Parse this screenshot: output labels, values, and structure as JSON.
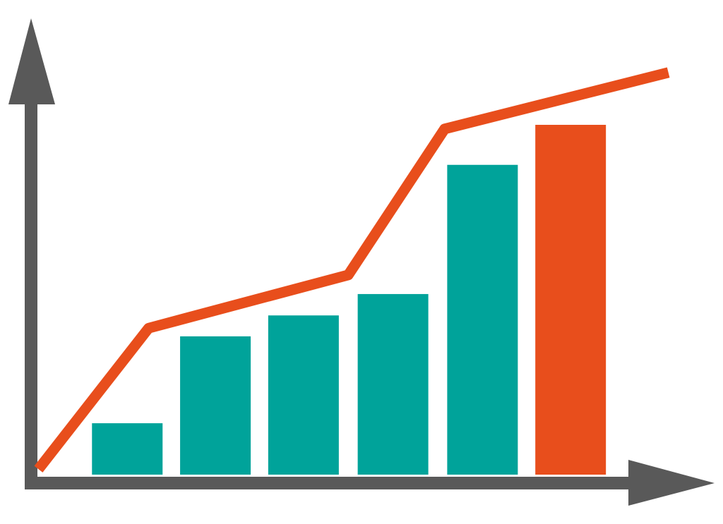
{
  "chart_data": {
    "type": "bar",
    "title": "",
    "xlabel": "",
    "ylabel": "",
    "xlim": [
      0,
      100
    ],
    "ylim": [
      0,
      100
    ],
    "grid": false,
    "legend": "none",
    "bars": {
      "x": [
        14.9,
        27.7,
        40.5,
        53.5,
        66.5,
        79.3
      ],
      "values": [
        11.3,
        30.4,
        35.0,
        39.7,
        68.1,
        76.9
      ],
      "colors": [
        "#00A39A",
        "#00A39A",
        "#00A39A",
        "#00A39A",
        "#00A39A",
        "#E84E1C"
      ]
    },
    "line": {
      "x": [
        2,
        18,
        47,
        61,
        93.5
      ],
      "values": [
        1.2,
        32.2,
        43.9,
        76.0,
        88.4
      ],
      "color": "#E84E1C"
    },
    "axis_color": "#595959"
  }
}
